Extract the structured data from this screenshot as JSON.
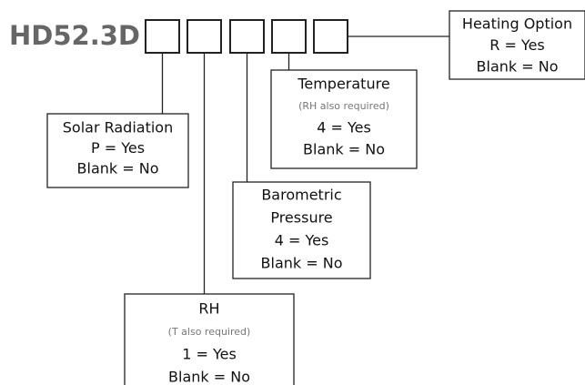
{
  "model": "HD52.3D",
  "options": [
    {
      "title": "Solar Radiation",
      "lines": [
        "P = Yes",
        "Blank = No"
      ]
    },
    {
      "title": "RH",
      "note": "(T also required)",
      "lines": [
        "1 = Yes",
        "Blank = No"
      ]
    },
    {
      "title": "Barometric",
      "title2": "Pressure",
      "lines": [
        "4 = Yes",
        "Blank = No"
      ]
    },
    {
      "title": "Temperature",
      "note": "(RH also required)",
      "lines": [
        "4 = Yes",
        "Blank = No"
      ]
    },
    {
      "title": "Heating Option",
      "lines": [
        "R = Yes",
        "Blank = No"
      ]
    }
  ]
}
